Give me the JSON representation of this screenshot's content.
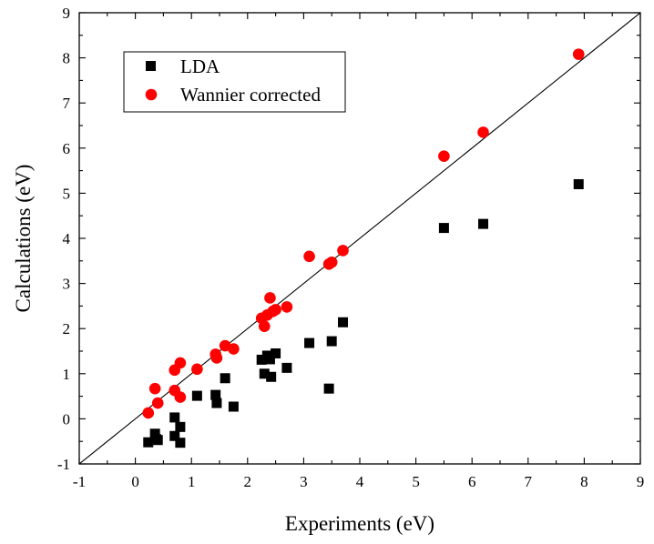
{
  "chart_data": {
    "type": "scatter",
    "title": "",
    "xlabel": "Experiments (eV)",
    "ylabel": "Calculations (eV)",
    "xlim": [
      -1,
      9
    ],
    "ylim": [
      -1,
      9
    ],
    "xticks": [
      "-1",
      "0",
      "1",
      "2",
      "3",
      "4",
      "5",
      "6",
      "7",
      "8",
      "9"
    ],
    "yticks": [
      "-1",
      "0",
      "1",
      "2",
      "3",
      "4",
      "5",
      "6",
      "7",
      "8",
      "9"
    ],
    "grid": false,
    "legend_position": "top-left",
    "reference_line": {
      "slope": 1,
      "intercept": 0,
      "color": "#000000"
    },
    "series": [
      {
        "name": "LDA",
        "marker": "square",
        "color": "#000000",
        "points": [
          [
            0.23,
            -0.52
          ],
          [
            0.35,
            -0.33
          ],
          [
            0.37,
            -0.45
          ],
          [
            0.4,
            -0.47
          ],
          [
            0.7,
            0.03
          ],
          [
            0.7,
            -0.38
          ],
          [
            0.8,
            -0.18
          ],
          [
            0.8,
            -0.53
          ],
          [
            1.1,
            0.51
          ],
          [
            1.43,
            0.53
          ],
          [
            1.45,
            0.35
          ],
          [
            1.6,
            0.9
          ],
          [
            1.75,
            0.27
          ],
          [
            2.25,
            1.31
          ],
          [
            2.3,
            1.0
          ],
          [
            2.35,
            1.4
          ],
          [
            2.4,
            1.32
          ],
          [
            2.42,
            0.93
          ],
          [
            2.5,
            1.45
          ],
          [
            2.7,
            1.13
          ],
          [
            3.1,
            1.68
          ],
          [
            3.45,
            0.67
          ],
          [
            3.5,
            1.72
          ],
          [
            3.7,
            2.14
          ],
          [
            5.5,
            4.23
          ],
          [
            6.2,
            4.32
          ],
          [
            7.9,
            5.2
          ]
        ]
      },
      {
        "name": "Wannier corrected",
        "marker": "circle",
        "color": "#ff0000",
        "points": [
          [
            0.23,
            0.13
          ],
          [
            0.35,
            0.67
          ],
          [
            0.4,
            0.35
          ],
          [
            0.7,
            1.08
          ],
          [
            0.7,
            0.63
          ],
          [
            0.8,
            1.24
          ],
          [
            0.8,
            0.48
          ],
          [
            1.1,
            1.1
          ],
          [
            1.43,
            1.43
          ],
          [
            1.45,
            1.35
          ],
          [
            1.6,
            1.62
          ],
          [
            1.75,
            1.55
          ],
          [
            2.25,
            2.23
          ],
          [
            2.3,
            2.05
          ],
          [
            2.35,
            2.3
          ],
          [
            2.4,
            2.68
          ],
          [
            2.45,
            2.38
          ],
          [
            2.5,
            2.42
          ],
          [
            2.7,
            2.48
          ],
          [
            3.1,
            3.6
          ],
          [
            3.45,
            3.43
          ],
          [
            3.5,
            3.47
          ],
          [
            3.7,
            3.73
          ],
          [
            5.5,
            5.82
          ],
          [
            6.2,
            6.35
          ],
          [
            7.9,
            8.08
          ]
        ]
      }
    ]
  }
}
